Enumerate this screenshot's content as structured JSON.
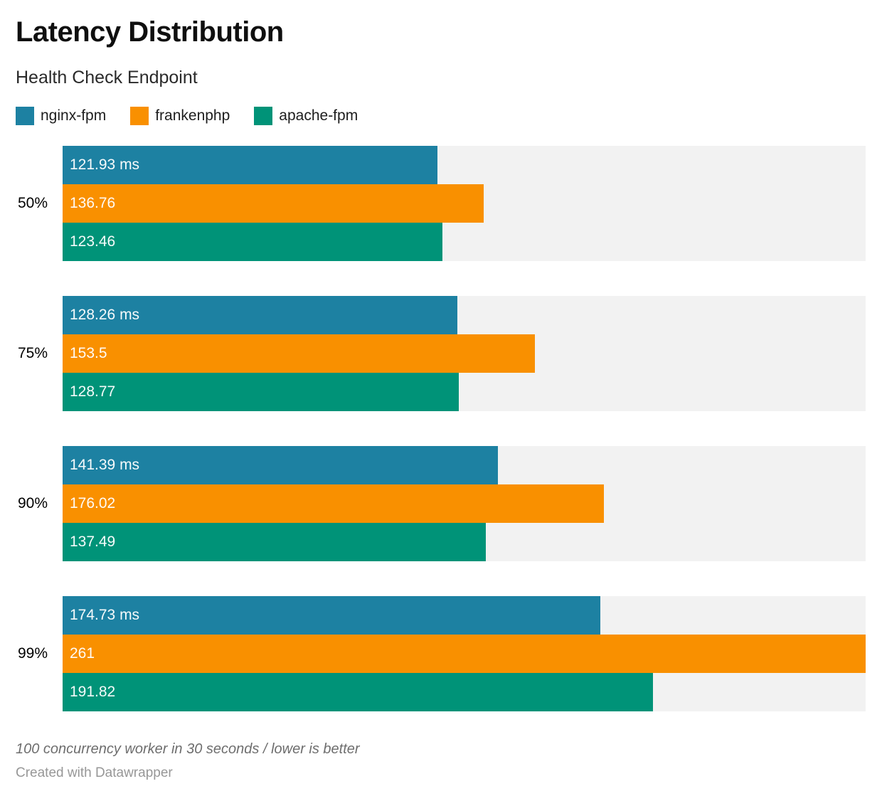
{
  "chart_data": {
    "type": "bar",
    "orientation": "horizontal",
    "title": "Latency Distribution",
    "subtitle": "Health Check Endpoint",
    "categories": [
      "50%",
      "75%",
      "90%",
      "99%"
    ],
    "series": [
      {
        "name": "nginx-fpm",
        "color": "#1d81a2",
        "values": [
          121.93,
          128.26,
          141.39,
          174.73
        ]
      },
      {
        "name": "frankenphp",
        "color": "#f99000",
        "values": [
          136.76,
          153.5,
          176.02,
          261
        ]
      },
      {
        "name": "apache-fpm",
        "color": "#009378",
        "values": [
          123.46,
          128.77,
          137.49,
          191.82
        ]
      }
    ],
    "bar_labels": [
      [
        "121.93 ms",
        "136.76",
        "123.46"
      ],
      [
        "128.26 ms",
        "153.5",
        "128.77"
      ],
      [
        "141.39 ms",
        "176.02",
        "137.49"
      ],
      [
        "174.73 ms",
        "261",
        "191.82"
      ]
    ],
    "value_unit": "ms",
    "xlim": [
      0,
      261
    ],
    "legend_position": "top",
    "grid": false,
    "track_color": "#f2f2f2"
  },
  "footer": {
    "note": "100 concurrency worker in 30 seconds / lower is better",
    "credit": "Created with Datawrapper"
  }
}
